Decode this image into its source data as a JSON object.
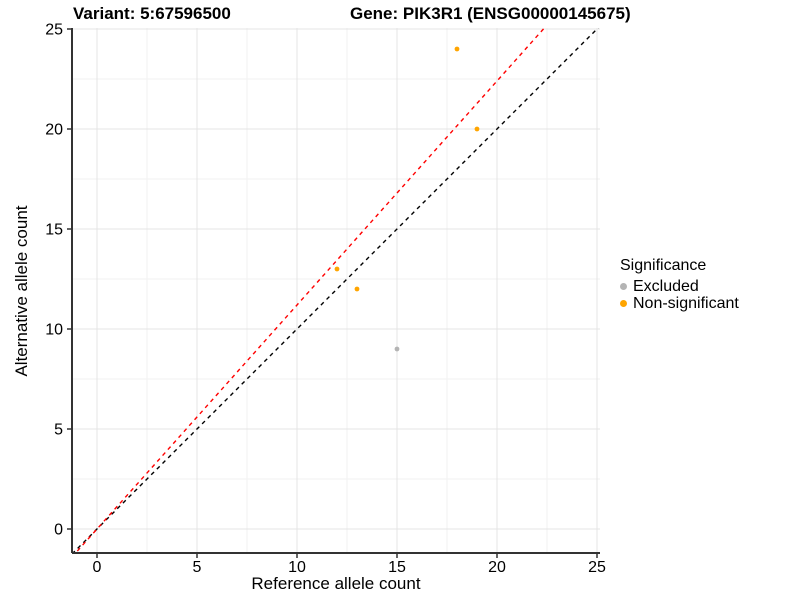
{
  "chart_data": {
    "type": "scatter",
    "title_left": "Variant: 5:67596500",
    "title_right": "Gene: PIK3R1 (ENSG00000145675)",
    "xlabel": "Reference allele count",
    "ylabel": "Alternative allele count",
    "x_ticks": [
      0,
      5,
      10,
      15,
      20,
      25
    ],
    "y_ticks": [
      0,
      5,
      10,
      15,
      20,
      25
    ],
    "xlim": [
      -1.25,
      25.15
    ],
    "ylim": [
      -1.2,
      25.05
    ],
    "grid": "major+minor",
    "colors": {
      "excluded": "#b4b4b4",
      "non_significant": "#ffa500",
      "identity_line": "#000000",
      "expected_line": "#ff0000",
      "grid_major": "#e4e4e4",
      "grid_minor": "#f2f2f2",
      "axis_line": "#333333"
    },
    "legend": {
      "title": "Significance",
      "position": "right",
      "entries": [
        {
          "label": "Excluded",
          "color": "#b4b4b4"
        },
        {
          "label": "Non-significant",
          "color": "#ffa500"
        }
      ]
    },
    "series": [
      {
        "name": "Excluded",
        "color": "#b4b4b4",
        "points": [
          {
            "x": 15,
            "y": 9
          }
        ]
      },
      {
        "name": "Non-significant",
        "color": "#ffa500",
        "points": [
          {
            "x": 12,
            "y": 13
          },
          {
            "x": 13,
            "y": 12
          },
          {
            "x": 18,
            "y": 24
          },
          {
            "x": 19,
            "y": 20
          }
        ]
      }
    ],
    "lines": [
      {
        "name": "identity-line",
        "style": "dashed",
        "color": "#000000",
        "slope": 1.0,
        "intercept": 0
      },
      {
        "name": "expected-line",
        "style": "dashed",
        "color": "#ff0000",
        "slope": 1.12,
        "intercept": 0
      }
    ]
  }
}
